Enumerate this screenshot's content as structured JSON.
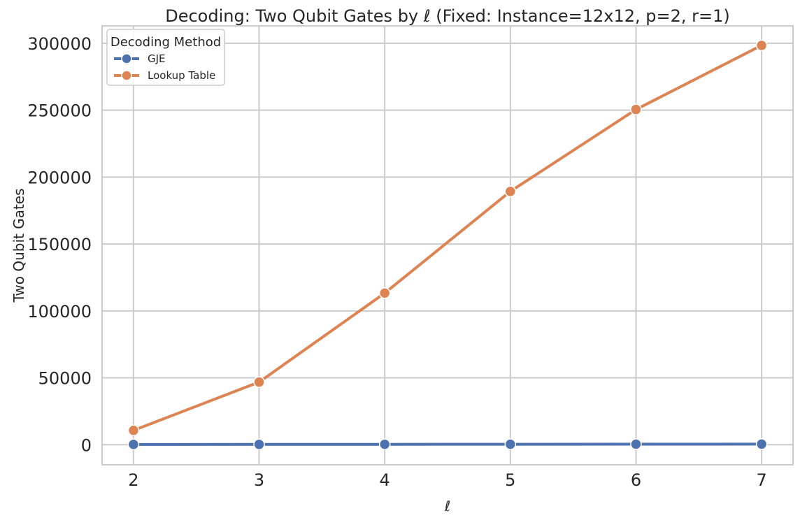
{
  "chart_data": {
    "type": "line",
    "title": "Decoding: Two Qubit Gates by ℓ (Fixed: Instance=12x12, p=2, r=1)",
    "xlabel": "ℓ",
    "ylabel": "Two Qubit Gates",
    "x": [
      2,
      3,
      4,
      5,
      6,
      7
    ],
    "xlim": [
      1.75,
      7.25
    ],
    "ylim": [
      -15000,
      313000
    ],
    "yticks": [
      0,
      50000,
      100000,
      150000,
      200000,
      250000,
      300000
    ],
    "grid": true,
    "legend": {
      "title": "Decoding Method",
      "placement": "top-left"
    },
    "series": [
      {
        "name": "GJE",
        "color": "#4c72b0",
        "values": [
          200,
          250,
          300,
          350,
          400,
          450
        ]
      },
      {
        "name": "Lookup Table",
        "color": "#dd8452",
        "values": [
          10700,
          46800,
          113300,
          189300,
          250500,
          298400
        ]
      }
    ]
  }
}
